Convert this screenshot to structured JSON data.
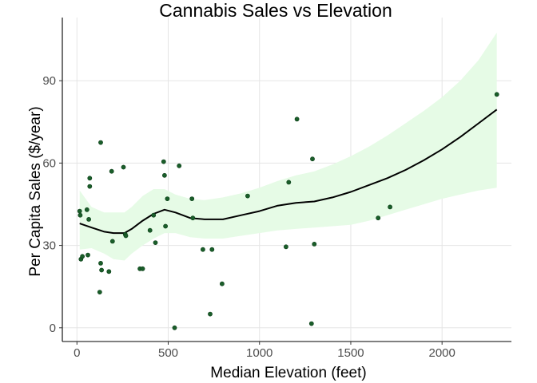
{
  "chart_data": {
    "type": "scatter",
    "title": "Cannabis Sales vs Elevation",
    "xlabel": "Median Elevation (feet)",
    "ylabel": "Per Capita Sales ($/year)",
    "xlim": [
      -80,
      2380
    ],
    "ylim": [
      -5,
      113
    ],
    "xticks": [
      0,
      500,
      1000,
      1500,
      2000
    ],
    "yticks": [
      0,
      30,
      60,
      90
    ],
    "grid": true,
    "colors": {
      "points": "#1a5e2a",
      "point_outline": "#0b3d17",
      "ribbon": "#e6fbe6",
      "smooth": "#000000"
    },
    "points": [
      {
        "x": 15,
        "y": 42.5
      },
      {
        "x": 18,
        "y": 41
      },
      {
        "x": 22,
        "y": 25
      },
      {
        "x": 30,
        "y": 26
      },
      {
        "x": 55,
        "y": 43
      },
      {
        "x": 60,
        "y": 26.5
      },
      {
        "x": 65,
        "y": 39.5
      },
      {
        "x": 70,
        "y": 54.5
      },
      {
        "x": 70,
        "y": 51.5
      },
      {
        "x": 125,
        "y": 13
      },
      {
        "x": 130,
        "y": 67.5
      },
      {
        "x": 130,
        "y": 23.5
      },
      {
        "x": 135,
        "y": 21
      },
      {
        "x": 175,
        "y": 20.5
      },
      {
        "x": 190,
        "y": 57
      },
      {
        "x": 195,
        "y": 31.5
      },
      {
        "x": 255,
        "y": 58.5
      },
      {
        "x": 265,
        "y": 34
      },
      {
        "x": 268,
        "y": 33.5
      },
      {
        "x": 345,
        "y": 21.5
      },
      {
        "x": 360,
        "y": 21.5
      },
      {
        "x": 400,
        "y": 35.5
      },
      {
        "x": 420,
        "y": 41
      },
      {
        "x": 430,
        "y": 31
      },
      {
        "x": 475,
        "y": 60.5
      },
      {
        "x": 480,
        "y": 55.5
      },
      {
        "x": 485,
        "y": 37
      },
      {
        "x": 495,
        "y": 47
      },
      {
        "x": 535,
        "y": 0
      },
      {
        "x": 560,
        "y": 59
      },
      {
        "x": 630,
        "y": 47
      },
      {
        "x": 635,
        "y": 40
      },
      {
        "x": 690,
        "y": 28.5
      },
      {
        "x": 730,
        "y": 5
      },
      {
        "x": 740,
        "y": 28.5
      },
      {
        "x": 795,
        "y": 16
      },
      {
        "x": 935,
        "y": 48
      },
      {
        "x": 1145,
        "y": 29.5
      },
      {
        "x": 1160,
        "y": 53
      },
      {
        "x": 1205,
        "y": 76
      },
      {
        "x": 1285,
        "y": 1.5
      },
      {
        "x": 1290,
        "y": 61.5
      },
      {
        "x": 1300,
        "y": 30.5
      },
      {
        "x": 1650,
        "y": 40
      },
      {
        "x": 1715,
        "y": 44
      },
      {
        "x": 2300,
        "y": 85
      }
    ],
    "smooth": [
      {
        "x": 15,
        "y": 38
      },
      {
        "x": 80,
        "y": 36.5
      },
      {
        "x": 150,
        "y": 35
      },
      {
        "x": 200,
        "y": 34.5
      },
      {
        "x": 260,
        "y": 34.5
      },
      {
        "x": 300,
        "y": 36
      },
      {
        "x": 360,
        "y": 39
      },
      {
        "x": 420,
        "y": 41.5
      },
      {
        "x": 480,
        "y": 43
      },
      {
        "x": 540,
        "y": 42
      },
      {
        "x": 620,
        "y": 40
      },
      {
        "x": 700,
        "y": 39.5
      },
      {
        "x": 800,
        "y": 39.5
      },
      {
        "x": 900,
        "y": 41
      },
      {
        "x": 1000,
        "y": 42.5
      },
      {
        "x": 1100,
        "y": 44.5
      },
      {
        "x": 1200,
        "y": 45.5
      },
      {
        "x": 1300,
        "y": 46
      },
      {
        "x": 1400,
        "y": 47.5
      },
      {
        "x": 1500,
        "y": 49.5
      },
      {
        "x": 1600,
        "y": 52
      },
      {
        "x": 1700,
        "y": 54.5
      },
      {
        "x": 1800,
        "y": 57.5
      },
      {
        "x": 1900,
        "y": 61
      },
      {
        "x": 2000,
        "y": 65
      },
      {
        "x": 2100,
        "y": 69.5
      },
      {
        "x": 2200,
        "y": 74.5
      },
      {
        "x": 2300,
        "y": 79.5
      }
    ],
    "ribbon_upper": [
      {
        "x": 15,
        "y": 50
      },
      {
        "x": 80,
        "y": 44
      },
      {
        "x": 150,
        "y": 42
      },
      {
        "x": 200,
        "y": 42
      },
      {
        "x": 260,
        "y": 42
      },
      {
        "x": 300,
        "y": 44
      },
      {
        "x": 360,
        "y": 48
      },
      {
        "x": 420,
        "y": 50.5
      },
      {
        "x": 480,
        "y": 50.5
      },
      {
        "x": 540,
        "y": 48.5
      },
      {
        "x": 620,
        "y": 47
      },
      {
        "x": 700,
        "y": 46.5
      },
      {
        "x": 800,
        "y": 47.5
      },
      {
        "x": 900,
        "y": 49
      },
      {
        "x": 1000,
        "y": 51
      },
      {
        "x": 1100,
        "y": 53.5
      },
      {
        "x": 1200,
        "y": 55.5
      },
      {
        "x": 1300,
        "y": 57
      },
      {
        "x": 1400,
        "y": 59.5
      },
      {
        "x": 1500,
        "y": 62.5
      },
      {
        "x": 1600,
        "y": 66
      },
      {
        "x": 1700,
        "y": 70
      },
      {
        "x": 1800,
        "y": 74.5
      },
      {
        "x": 1900,
        "y": 79
      },
      {
        "x": 2000,
        "y": 84
      },
      {
        "x": 2100,
        "y": 90
      },
      {
        "x": 2200,
        "y": 97.5
      },
      {
        "x": 2300,
        "y": 107.5
      }
    ],
    "ribbon_lower": [
      {
        "x": 15,
        "y": 28.5
      },
      {
        "x": 80,
        "y": 29
      },
      {
        "x": 150,
        "y": 27
      },
      {
        "x": 200,
        "y": 25
      },
      {
        "x": 260,
        "y": 24.5
      },
      {
        "x": 300,
        "y": 27
      },
      {
        "x": 360,
        "y": 30
      },
      {
        "x": 420,
        "y": 32.5
      },
      {
        "x": 480,
        "y": 34.5
      },
      {
        "x": 540,
        "y": 34.5
      },
      {
        "x": 620,
        "y": 33
      },
      {
        "x": 700,
        "y": 32.5
      },
      {
        "x": 800,
        "y": 32.5
      },
      {
        "x": 900,
        "y": 33.5
      },
      {
        "x": 1000,
        "y": 34.5
      },
      {
        "x": 1100,
        "y": 35.5
      },
      {
        "x": 1200,
        "y": 36
      },
      {
        "x": 1300,
        "y": 36.5
      },
      {
        "x": 1400,
        "y": 37
      },
      {
        "x": 1500,
        "y": 37.5
      },
      {
        "x": 1600,
        "y": 39
      },
      {
        "x": 1700,
        "y": 41
      },
      {
        "x": 1800,
        "y": 43
      },
      {
        "x": 1900,
        "y": 45
      },
      {
        "x": 2000,
        "y": 47
      },
      {
        "x": 2100,
        "y": 48.5
      },
      {
        "x": 2200,
        "y": 50
      },
      {
        "x": 2300,
        "y": 51
      }
    ]
  }
}
